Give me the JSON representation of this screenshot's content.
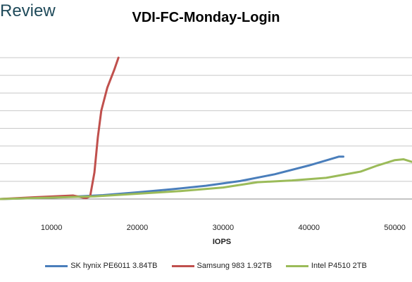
{
  "brand": {
    "text": "Review"
  },
  "chart_data": {
    "type": "line",
    "title": "VDI-FC-Monday-Login",
    "xlabel": "IOPS",
    "ylabel": "",
    "xlim": [
      4000,
      52000
    ],
    "ylim": [
      0,
      8
    ],
    "x_ticks": [
      10000,
      20000,
      30000,
      40000,
      50000
    ],
    "x_tick_labels": [
      "10000",
      "20000",
      "30000",
      "40000",
      "50000"
    ],
    "y_gridlines": [
      0,
      1,
      2,
      3,
      4,
      5,
      6,
      7,
      8
    ],
    "grid": true,
    "legend_position": "bottom",
    "series": [
      {
        "name": "SK hynix PE6011 3.84TB",
        "color": "#4a7ebb",
        "points": [
          [
            4000,
            0
          ],
          [
            8000,
            0.05
          ],
          [
            12000,
            0.12
          ],
          [
            16000,
            0.22
          ],
          [
            20000,
            0.38
          ],
          [
            24000,
            0.55
          ],
          [
            28000,
            0.75
          ],
          [
            32000,
            1.02
          ],
          [
            36000,
            1.4
          ],
          [
            40000,
            1.9
          ],
          [
            43500,
            2.4
          ],
          [
            44000,
            2.4
          ]
        ]
      },
      {
        "name": "Samsung 983 1.92TB",
        "color": "#c0504d",
        "points": [
          [
            4000,
            0
          ],
          [
            8000,
            0.1
          ],
          [
            12500,
            0.2
          ],
          [
            14000,
            0.05
          ],
          [
            14500,
            0.15
          ],
          [
            15000,
            1.5
          ],
          [
            15400,
            3.5
          ],
          [
            15800,
            5.0
          ],
          [
            16500,
            6.3
          ],
          [
            17300,
            7.3
          ],
          [
            17800,
            8.0
          ]
        ]
      },
      {
        "name": "Intel P4510 2TB",
        "color": "#9bbb59",
        "points": [
          [
            4000,
            0
          ],
          [
            10000,
            0.08
          ],
          [
            15000,
            0.15
          ],
          [
            20000,
            0.3
          ],
          [
            25000,
            0.45
          ],
          [
            30000,
            0.65
          ],
          [
            34000,
            0.95
          ],
          [
            38000,
            1.05
          ],
          [
            42000,
            1.2
          ],
          [
            46000,
            1.55
          ],
          [
            48000,
            1.9
          ],
          [
            50000,
            2.2
          ],
          [
            51000,
            2.25
          ],
          [
            52000,
            2.1
          ]
        ]
      }
    ]
  }
}
